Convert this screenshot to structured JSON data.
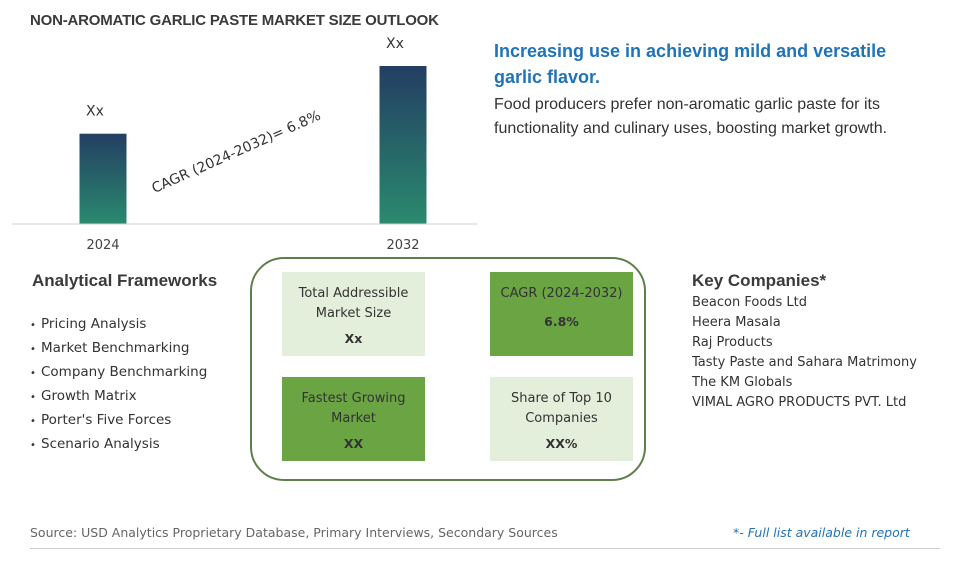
{
  "title": "NON-AROMATIC GARLIC PASTE MARKET SIZE OUTLOOK",
  "headline": "Increasing use in achieving mild and versatile garlic flavor.",
  "description": "Food producers prefer non-aromatic garlic paste for its functionality and culinary uses, boosting market growth.",
  "chart_data": {
    "type": "bar",
    "categories": [
      "2024",
      "2032"
    ],
    "values": [
      1,
      1.75
    ],
    "value_labels": [
      "Xx",
      "Xx"
    ],
    "annotation": "CAGR (2024-2032)=  6.8%",
    "colors": {
      "bar_top": "#233e62",
      "bar_bottom": "#2a8a6e"
    },
    "grid": false
  },
  "frameworks": {
    "heading": "Analytical Frameworks",
    "bullet": "•",
    "items": [
      "Pricing Analysis",
      "Market Benchmarking",
      "Company Benchmarking",
      "Growth Matrix",
      "Porter's Five Forces",
      "Scenario Analysis"
    ]
  },
  "cards": {
    "tam": {
      "label": "Total Addressible Market Size",
      "value": "Xx"
    },
    "cagr": {
      "label": "CAGR (2024-2032)",
      "value": "6.8%"
    },
    "fastest": {
      "label": "Fastest Growing Market",
      "value": "XX"
    },
    "share": {
      "label": "Share of Top 10 Companies",
      "value": "XX%"
    }
  },
  "key_companies": {
    "heading": "Key Companies*",
    "items": [
      "Beacon Foods Ltd",
      "Heera Masala",
      "Raj Products",
      "Tasty Paste and Sahara Matrimony",
      "The KM Globals",
      "VIMAL AGRO PRODUCTS PVT. Ltd"
    ]
  },
  "source": "Source: USD Analytics Proprietary Database, Primary Interviews, Secondary Sources",
  "footnote": "*- Full list available in report",
  "colors": {
    "accent": "#1f73b7",
    "card_light": "#e4efdb",
    "card_dark": "#6aa443",
    "panel_border": "#5f7f4a"
  }
}
